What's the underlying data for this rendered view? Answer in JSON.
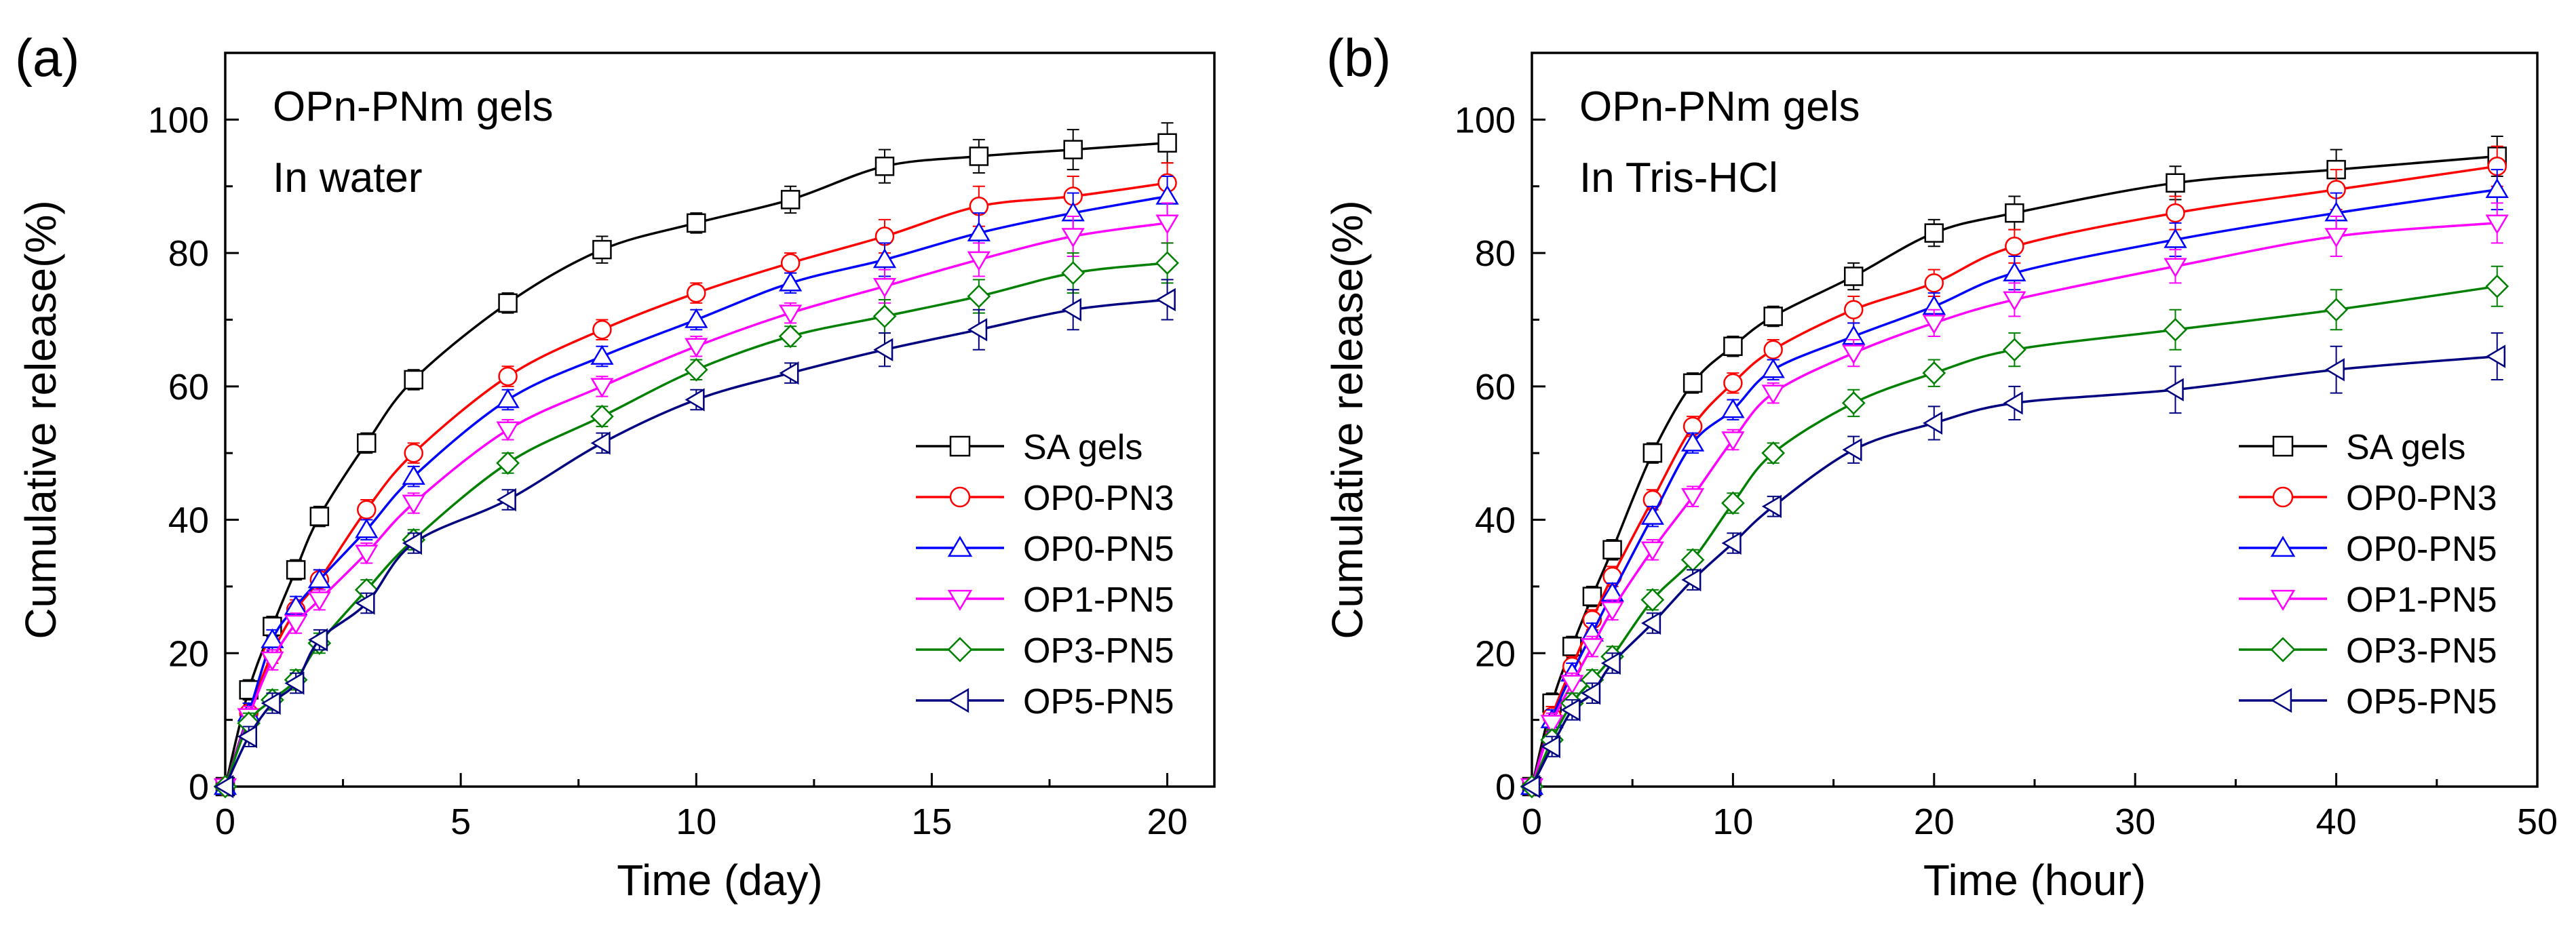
{
  "chart_data": [
    {
      "type": "line",
      "panel_label": "(a)",
      "annotation_lines": [
        "OPn-PNm gels",
        "In water"
      ],
      "xlabel": "Time (day)",
      "ylabel": "Cumulative release(%)",
      "xlim": [
        0,
        21
      ],
      "ylim": [
        0,
        110
      ],
      "xticks": [
        0,
        5,
        10,
        15,
        20
      ],
      "yticks": [
        0,
        20,
        40,
        60,
        80,
        100
      ],
      "legend_position": "lower-right",
      "x": [
        0,
        0.5,
        1,
        1.5,
        2,
        3,
        4,
        6,
        8,
        10,
        12,
        14,
        16,
        18,
        20
      ],
      "series": [
        {
          "name": "SA gels",
          "color": "#000000",
          "marker": "square",
          "values": [
            0,
            14.5,
            24,
            32.5,
            40.5,
            51.5,
            61,
            72.5,
            80.5,
            84.5,
            88,
            93,
            94.5,
            95.5,
            96.5
          ],
          "errors": [
            0,
            1.5,
            1.5,
            1.5,
            1.5,
            1.5,
            1.5,
            1.5,
            2,
            1.5,
            2,
            2.5,
            2.5,
            3,
            3
          ]
        },
        {
          "name": "OP0-PN3",
          "color": "#ff0000",
          "marker": "circle",
          "values": [
            0,
            11,
            20,
            26.5,
            31,
            41.5,
            50,
            61.5,
            68.5,
            74,
            78.5,
            82.5,
            87,
            88.5,
            90.5
          ],
          "errors": [
            0,
            1.5,
            1.5,
            1.5,
            1.5,
            1.5,
            1.5,
            1.5,
            1.5,
            1.5,
            1.5,
            2.5,
            3,
            3,
            3
          ]
        },
        {
          "name": "OP0-PN5",
          "color": "#0000ff",
          "marker": "triangle-up",
          "values": [
            0,
            11,
            22,
            27,
            31,
            38.5,
            46.5,
            58,
            64.5,
            70,
            75.5,
            79,
            83,
            86,
            88.5
          ],
          "errors": [
            0,
            1.5,
            1.5,
            1.5,
            1.5,
            1.5,
            1.5,
            1.5,
            1.5,
            1.5,
            1.5,
            2.5,
            3,
            3,
            3
          ]
        },
        {
          "name": "OP1-PN5",
          "color": "#ff00ff",
          "marker": "triangle-down",
          "values": [
            0,
            10.5,
            19,
            24.5,
            28,
            35,
            42.5,
            53.5,
            60,
            66,
            71,
            75,
            79,
            82.5,
            84.5
          ],
          "errors": [
            0,
            1.5,
            1.5,
            1.5,
            1.5,
            1.5,
            1.5,
            1.5,
            1.5,
            1.5,
            1.5,
            2.5,
            2.5,
            3,
            3
          ]
        },
        {
          "name": "OP3-PN5",
          "color": "#008000",
          "marker": "diamond",
          "values": [
            0,
            9.5,
            13,
            16,
            21.5,
            29.5,
            37,
            48.5,
            55.5,
            62.5,
            67.5,
            70.5,
            73.5,
            77,
            78.5
          ],
          "errors": [
            0,
            1.5,
            1.5,
            1.5,
            1.5,
            1.5,
            1.5,
            1.5,
            1.5,
            1.5,
            1.5,
            2.5,
            2.5,
            3,
            3
          ]
        },
        {
          "name": "OP5-PN5",
          "color": "#000080",
          "marker": "triangle-left",
          "values": [
            0,
            7.5,
            12.5,
            15.5,
            22,
            27.5,
            36.5,
            43,
            51.5,
            58,
            62,
            65.5,
            68.5,
            71.5,
            73
          ],
          "errors": [
            0,
            1.5,
            1.5,
            1.5,
            1.5,
            1.5,
            1.5,
            1.5,
            1.5,
            1.5,
            1.5,
            2.5,
            3,
            3,
            3
          ]
        }
      ]
    },
    {
      "type": "line",
      "panel_label": "(b)",
      "annotation_lines": [
        "OPn-PNm gels",
        "In Tris-HCl"
      ],
      "xlabel": "Time (hour)",
      "ylabel": "Cumulative release(%)",
      "xlim": [
        0,
        50
      ],
      "ylim": [
        0,
        110
      ],
      "xticks": [
        0,
        10,
        20,
        30,
        40,
        50
      ],
      "yticks": [
        0,
        20,
        40,
        60,
        80,
        100
      ],
      "legend_position": "lower-right",
      "x": [
        0,
        1,
        2,
        3,
        4,
        6,
        8,
        10,
        12,
        16,
        20,
        24,
        32,
        40,
        48
      ],
      "series": [
        {
          "name": "SA gels",
          "color": "#000000",
          "marker": "square",
          "values": [
            0,
            12.5,
            21,
            28.5,
            35.5,
            50,
            60.5,
            66,
            70.5,
            76.5,
            83,
            86,
            90.5,
            92.5,
            94.5
          ],
          "errors": [
            0,
            1.5,
            1.5,
            1.5,
            1.5,
            1.5,
            1.5,
            1.5,
            1.5,
            2,
            2,
            2.5,
            2.5,
            3,
            3
          ]
        },
        {
          "name": "OP0-PN3",
          "color": "#ff0000",
          "marker": "circle",
          "values": [
            0,
            10.5,
            18,
            25,
            31.5,
            43,
            54,
            60.5,
            65.5,
            71.5,
            75.5,
            81,
            86,
            89.5,
            93
          ],
          "errors": [
            0,
            1.5,
            1.5,
            1.5,
            1.5,
            1.5,
            1.5,
            1.5,
            1.5,
            2,
            2,
            2.5,
            2.5,
            3,
            3
          ]
        },
        {
          "name": "OP0-PN5",
          "color": "#0000ff",
          "marker": "triangle-up",
          "values": [
            0,
            10,
            17,
            23,
            29,
            40.5,
            51.5,
            56.5,
            62.5,
            67.5,
            72,
            77,
            82,
            86,
            89.5
          ],
          "errors": [
            0,
            1.5,
            1.5,
            1.5,
            1.5,
            1.5,
            1.5,
            1.5,
            1.5,
            2,
            2,
            2.5,
            2.5,
            3,
            3
          ]
        },
        {
          "name": "OP1-PN5",
          "color": "#ff00ff",
          "marker": "triangle-down",
          "values": [
            0,
            9.5,
            15.5,
            21,
            26.5,
            35.5,
            43.5,
            52,
            59,
            65,
            69.5,
            73,
            78,
            82.5,
            84.5
          ],
          "errors": [
            0,
            1.5,
            1.5,
            1.5,
            1.5,
            1.5,
            1.5,
            1.5,
            1.5,
            2,
            2,
            2.5,
            2.5,
            3,
            3
          ]
        },
        {
          "name": "OP3-PN5",
          "color": "#008000",
          "marker": "diamond",
          "values": [
            0,
            7,
            12.5,
            16,
            19.5,
            28,
            34,
            42.5,
            50,
            57.5,
            62,
            65.5,
            68.5,
            71.5,
            75
          ],
          "errors": [
            0,
            1.5,
            1.5,
            1.5,
            1.5,
            1.5,
            1.5,
            1.5,
            1.5,
            2,
            2,
            2.5,
            3,
            3,
            3
          ]
        },
        {
          "name": "OP5-PN5",
          "color": "#000080",
          "marker": "triangle-left",
          "values": [
            0,
            6,
            11.5,
            14,
            18.5,
            24.5,
            31,
            36.5,
            42,
            50.5,
            54.5,
            57.5,
            59.5,
            62.5,
            64.5
          ],
          "errors": [
            0,
            1.5,
            1.5,
            1.5,
            1.5,
            1.5,
            1.5,
            1.5,
            1.5,
            2,
            2.5,
            2.5,
            3.5,
            3.5,
            3.5
          ]
        }
      ]
    }
  ]
}
